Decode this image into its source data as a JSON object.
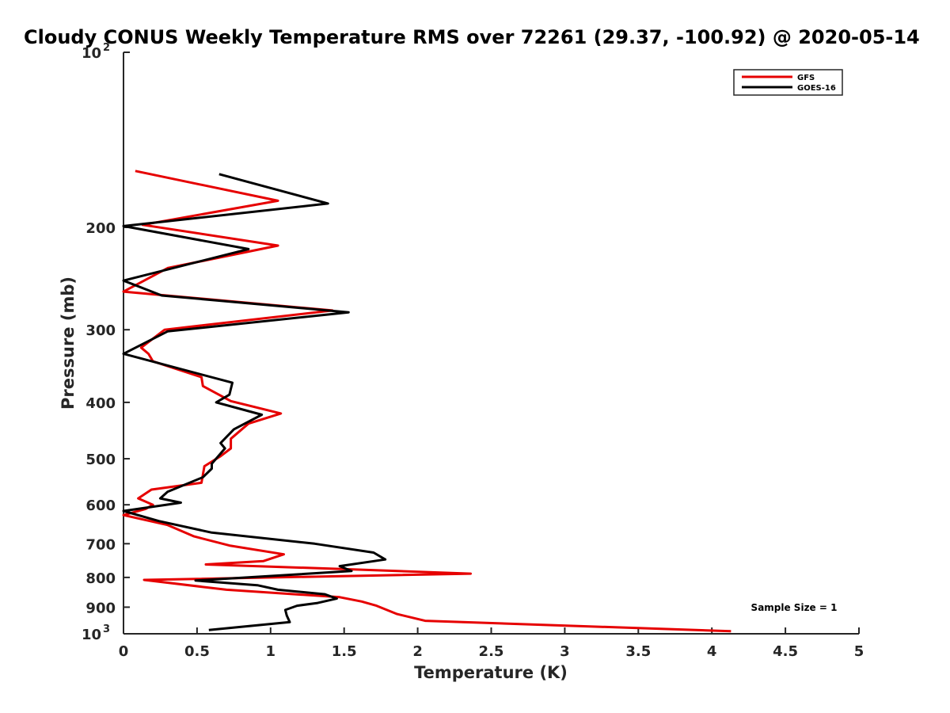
{
  "chart_data": {
    "type": "line",
    "title": "Cloudy CONUS Weekly Temperature RMS over 72261 (29.37, -100.92) @ 2020-05-14",
    "xlabel": "Temperature (K)",
    "ylabel": "Pressure (mb)",
    "xlim": [
      0,
      5
    ],
    "ylim": [
      100,
      1000
    ],
    "y_scale": "log",
    "y_reversed": true,
    "grid": false,
    "legend_position": "top-right",
    "x_ticks": [
      0,
      0.5,
      1,
      1.5,
      2,
      2.5,
      3,
      3.5,
      4,
      4.5,
      5
    ],
    "x_tick_labels": [
      "0",
      "0.5",
      "1",
      "1.5",
      "2",
      "2.5",
      "3",
      "3.5",
      "4",
      "4.5",
      "5"
    ],
    "y_ticks": [
      100,
      200,
      300,
      400,
      500,
      600,
      700,
      800,
      900,
      1000
    ],
    "y_tick_labels": [
      {
        "base": "10",
        "exp": "2"
      },
      {
        "base": "200",
        "exp": ""
      },
      {
        "base": "300",
        "exp": ""
      },
      {
        "base": "400",
        "exp": ""
      },
      {
        "base": "500",
        "exp": ""
      },
      {
        "base": "600",
        "exp": ""
      },
      {
        "base": "700",
        "exp": ""
      },
      {
        "base": "800",
        "exp": ""
      },
      {
        "base": "900",
        "exp": ""
      },
      {
        "base": "10",
        "exp": "3"
      }
    ],
    "annotation": "Sample Size = 1",
    "series": [
      {
        "name": "GFS",
        "color": "#e60000",
        "x": [
          0.08,
          1.05,
          0.13,
          1.05,
          0.3,
          0,
          1.42,
          0.28,
          0.12,
          0.17,
          0.2,
          0.53,
          0.54,
          0.73,
          1.07,
          0.85,
          0.73,
          0.73,
          0.66,
          0.55,
          0.53,
          0.19,
          0.1,
          0.2,
          0.15,
          0,
          0.3,
          0.48,
          0.72,
          1.09,
          0.95,
          0.56,
          1.56,
          2.36,
          0.14,
          0.7,
          1.47,
          1.62,
          1.72,
          1.86,
          2.05,
          4.13
        ],
        "y": [
          160,
          180,
          198,
          215,
          235,
          258,
          278,
          300,
          322,
          330,
          340,
          362,
          375,
          398,
          418,
          435,
          462,
          480,
          495,
          515,
          550,
          565,
          585,
          600,
          610,
          625,
          650,
          680,
          705,
          730,
          750,
          760,
          775,
          788,
          808,
          840,
          865,
          880,
          895,
          925,
          950,
          990
        ]
      },
      {
        "name": "GOES-16",
        "color": "#000000",
        "x": [
          0.65,
          1.39,
          0,
          0.85,
          0,
          0.26,
          1.53,
          0.3,
          0,
          0.74,
          0.72,
          0.63,
          0.94,
          0.75,
          0.66,
          0.69,
          0.6,
          0.6,
          0.54,
          0.3,
          0.25,
          0.39,
          0,
          0.24,
          0.6,
          1.3,
          1.7,
          1.78,
          1.47,
          1.55,
          0.49,
          0.91,
          1.05,
          1.37,
          1.45,
          1.32,
          1.18,
          1.1,
          1.11,
          1.13,
          0.58
        ],
        "y": [
          162,
          182,
          199,
          218,
          247,
          262,
          280,
          302,
          330,
          370,
          388,
          400,
          420,
          445,
          470,
          480,
          510,
          520,
          538,
          570,
          585,
          595,
          615,
          640,
          670,
          700,
          725,
          745,
          765,
          780,
          810,
          825,
          840,
          855,
          870,
          885,
          895,
          910,
          930,
          955,
          985
        ]
      }
    ]
  }
}
